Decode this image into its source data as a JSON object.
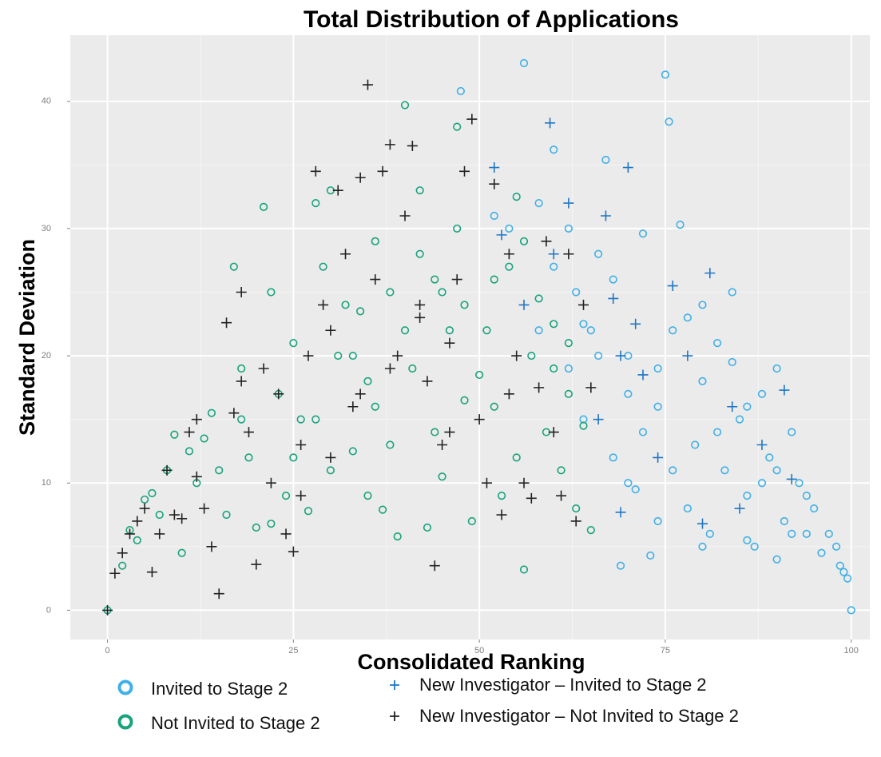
{
  "chart_data": {
    "type": "scatter",
    "title": "Total Distribution of Applications",
    "xlabel": "Consolidated Ranking",
    "ylabel": "Standard Deviation",
    "xlim": [
      -5,
      102.5
    ],
    "ylim": [
      -2.3,
      45.2
    ],
    "xticks": [
      0,
      25,
      50,
      75,
      100
    ],
    "yticks": [
      0,
      10,
      20,
      30,
      40
    ],
    "grid": true,
    "legend": "bottom",
    "series": [
      {
        "name": "Invited to Stage 2",
        "color": "#3fb0e8",
        "marker": "circle",
        "x": [
          52,
          54,
          56,
          58,
          60,
          62,
          63,
          64,
          65,
          66,
          67,
          68,
          69,
          70,
          71,
          72,
          73,
          74,
          75,
          75.5,
          76,
          77,
          78,
          79,
          80,
          81,
          82,
          83,
          84,
          85,
          86,
          87,
          88,
          89,
          90,
          91,
          92,
          93,
          94,
          95,
          96,
          97,
          98,
          99,
          100,
          99.5,
          98.5,
          47.5,
          66,
          70,
          72,
          76,
          80,
          84,
          88,
          92,
          68,
          74,
          78,
          82,
          86,
          90,
          94,
          62,
          64,
          60,
          58,
          70,
          74,
          80,
          86,
          90
        ],
        "y": [
          31,
          30,
          43,
          32,
          36.2,
          19,
          25,
          15,
          22,
          28,
          35.4,
          12,
          3.5,
          20,
          9.5,
          29.6,
          4.3,
          16,
          42.1,
          38.4,
          22,
          30.3,
          8,
          13,
          18,
          6,
          21,
          11,
          25,
          15,
          9,
          5,
          17,
          12,
          19,
          7,
          14,
          10,
          6,
          8,
          4.5,
          6,
          5,
          3,
          0,
          2.5,
          3.5,
          40.8,
          20,
          17,
          14,
          11,
          24,
          19.5,
          10,
          6,
          26,
          19,
          23,
          14,
          16,
          11,
          9,
          30,
          22.5,
          27,
          22,
          10,
          7,
          5,
          5.5,
          4
        ]
      },
      {
        "name": "Not Invited to Stage 2",
        "color": "#17a37c",
        "marker": "circle",
        "x": [
          0,
          2,
          3,
          4,
          5,
          6,
          7,
          8,
          9,
          10,
          11,
          12,
          13,
          14,
          15,
          16,
          17,
          18,
          19,
          20,
          21,
          22,
          23,
          24,
          25,
          26,
          27,
          28,
          29,
          30,
          31,
          32,
          33,
          34,
          35,
          36,
          37,
          38,
          39,
          40,
          41,
          42,
          43,
          44,
          45,
          46,
          47,
          48,
          49,
          50,
          51,
          52,
          53,
          54,
          55,
          56,
          57,
          58,
          59,
          60,
          61,
          62,
          63,
          64,
          65,
          22,
          28,
          30,
          36,
          40,
          44,
          47,
          52,
          55,
          60,
          38,
          42,
          33,
          48,
          18,
          25,
          56,
          62,
          45,
          35
        ],
        "y": [
          0,
          3.5,
          6.3,
          5.5,
          8.7,
          9.2,
          7.5,
          11,
          13.8,
          4.5,
          12.5,
          10,
          13.5,
          15.5,
          11,
          7.5,
          27,
          19,
          12,
          6.5,
          31.7,
          25,
          17,
          9,
          21,
          15,
          7.8,
          32,
          27,
          33,
          20,
          24,
          12.5,
          23.5,
          18,
          29,
          7.9,
          25,
          5.8,
          39.7,
          19,
          33,
          6.5,
          26,
          10.5,
          22,
          38,
          24,
          7,
          18.5,
          22,
          16,
          9,
          27,
          32.5,
          3.2,
          20,
          24.5,
          14,
          22.5,
          11,
          17,
          8,
          14.5,
          6.3,
          6.8,
          15,
          11,
          16,
          22,
          14,
          30,
          26,
          12,
          19,
          13,
          28,
          20,
          16.5,
          15,
          12,
          29,
          21,
          25,
          9
        ]
      },
      {
        "name": "New Investigator – Invited to Stage 2",
        "color": "#1f76c4",
        "marker": "plus",
        "x": [
          52,
          53,
          59.5,
          60,
          62,
          67,
          68,
          69,
          70,
          72,
          76,
          78,
          80,
          81,
          84,
          88,
          91,
          92,
          74,
          69,
          66,
          85,
          56,
          71
        ],
        "y": [
          34.8,
          29.5,
          38.3,
          28,
          32,
          31,
          24.5,
          20,
          34.8,
          18.5,
          25.5,
          20,
          6.8,
          26.5,
          16,
          13,
          17.3,
          10.3,
          12,
          7.7,
          15,
          8,
          24,
          22.5
        ]
      },
      {
        "name": "New Investigator – Not Invited to Stage 2",
        "color": "#222222",
        "marker": "plus",
        "x": [
          0,
          1,
          2,
          3,
          4,
          5,
          6,
          7,
          8,
          9,
          10,
          11,
          12,
          13,
          14,
          15,
          16,
          17,
          18,
          19,
          20,
          21,
          22,
          23,
          24,
          25,
          26,
          27,
          28,
          29,
          30,
          31,
          32,
          33,
          34,
          35,
          36,
          37,
          38,
          39,
          40,
          41,
          42,
          43,
          44,
          45,
          46,
          47,
          48,
          49,
          50,
          51,
          52,
          53,
          54,
          55,
          56,
          57,
          58,
          59,
          60,
          61,
          62,
          63,
          64,
          65,
          12,
          18,
          26,
          30,
          34,
          38,
          42,
          46,
          54
        ],
        "y": [
          0,
          2.9,
          4.5,
          6,
          7,
          8,
          3,
          6,
          11,
          7.5,
          7.2,
          14,
          10.5,
          8,
          5,
          1.3,
          22.6,
          15.5,
          25,
          14,
          3.6,
          19,
          10,
          17,
          6,
          4.6,
          13,
          20,
          34.5,
          24,
          12,
          33,
          28,
          16,
          34,
          41.3,
          26,
          34.5,
          36.6,
          20,
          31,
          36.5,
          24,
          18,
          3.5,
          13,
          21,
          26,
          34.5,
          38.6,
          15,
          10,
          33.5,
          7.5,
          28,
          20,
          10,
          8.8,
          17.5,
          29,
          14,
          9,
          28,
          7,
          24,
          17.5,
          15,
          18,
          9,
          22,
          17,
          19,
          23,
          14,
          17
        ]
      }
    ]
  }
}
